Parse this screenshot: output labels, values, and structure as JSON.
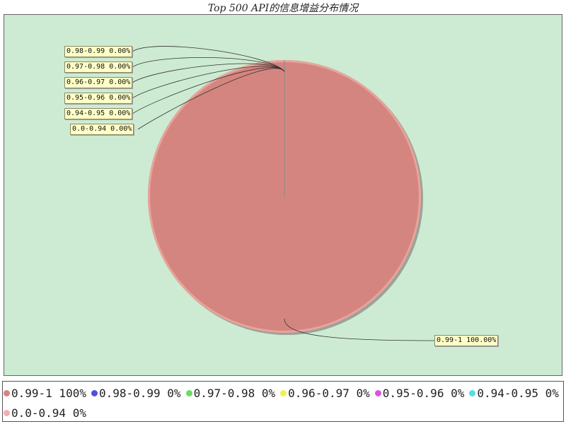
{
  "chart_data": {
    "type": "pie",
    "title": "Top 500 API的信息增益分布情况",
    "slices": [
      {
        "label": "0.99-1",
        "value": 100,
        "callout": "0.99-1 100.00%",
        "legend": "0.99-1 100%",
        "color": "#d5857f"
      },
      {
        "label": "0.98-0.99",
        "value": 0,
        "callout": "0.98-0.99 0.00%",
        "legend": "0.98-0.99 0%",
        "color": "#5050e0"
      },
      {
        "label": "0.97-0.98",
        "value": 0,
        "callout": "0.97-0.98 0.00%",
        "legend": "0.97-0.98 0%",
        "color": "#66dd66"
      },
      {
        "label": "0.96-0.97",
        "value": 0,
        "callout": "0.96-0.97 0.00%",
        "legend": "0.96-0.97 0%",
        "color": "#f0f050"
      },
      {
        "label": "0.95-0.96",
        "value": 0,
        "callout": "0.95-0.96 0.00%",
        "legend": "0.95-0.96 0%",
        "color": "#e050e0"
      },
      {
        "label": "0.94-0.95",
        "value": 0,
        "callout": "0.94-0.95 0.00%",
        "legend": "0.94-0.95 0%",
        "color": "#50e0e0"
      },
      {
        "label": "0.0-0.94",
        "value": 0,
        "callout": "0.0-0.94 0.00%",
        "legend": "0.0-0.94 0%",
        "color": "#f0b0b0"
      }
    ],
    "legend_position": "bottom"
  },
  "colors": {
    "plot_background": "#cdebd2",
    "callout_background": "#ffffc6"
  }
}
